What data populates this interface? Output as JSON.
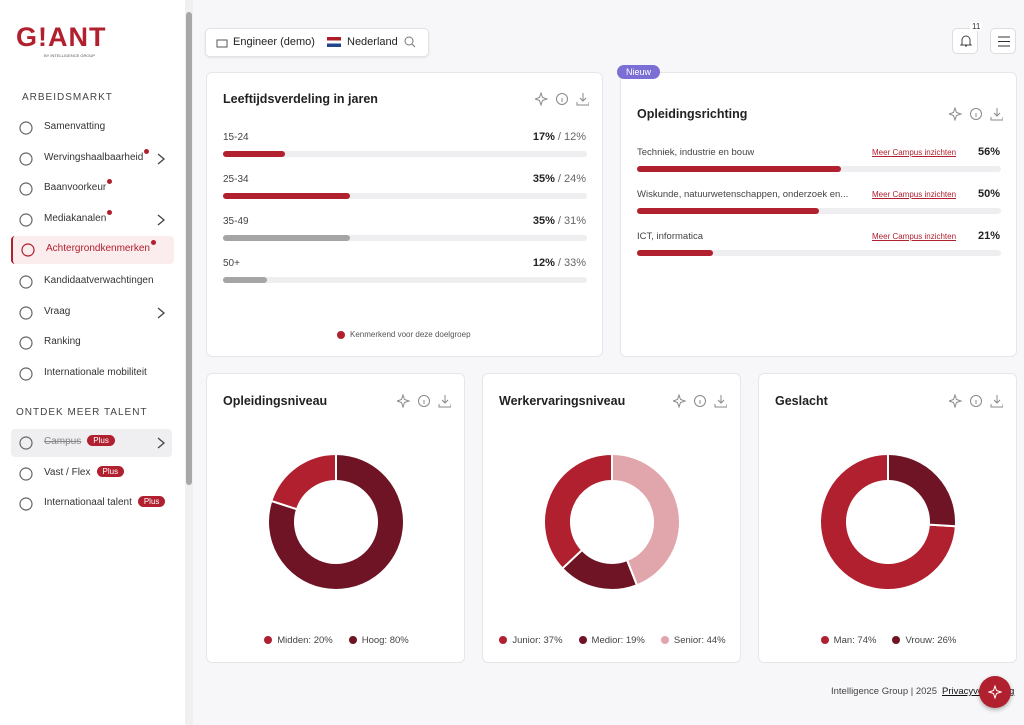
{
  "sidebar": {
    "logo": "G!ANT",
    "logo_sub": "BY INTELLIGENCE GROUP",
    "sections": [
      {
        "title": "ARBEIDSMARKT",
        "items": [
          {
            "label": "Samenvatting"
          },
          {
            "label": "Wervingshaalbaarheid",
            "dot": true,
            "submenu": true
          },
          {
            "label": "Baanvoorkeur",
            "dot": true
          },
          {
            "label": "Mediakanalen",
            "dot": true,
            "submenu": true
          },
          {
            "label": "Achtergrondkenmerken",
            "dot": true,
            "active": true
          },
          {
            "label": "Kandidaatverwachtingen"
          },
          {
            "label": "Vraag",
            "submenu": true
          },
          {
            "label": "Ranking"
          },
          {
            "label": "Internationale mobiliteit"
          }
        ]
      },
      {
        "title": "ONTDEK MEER TALENT",
        "items": [
          {
            "label": "Campus",
            "badge": "Plus",
            "submenu": true,
            "strikethrough": true,
            "shaded": true
          },
          {
            "label": "Vast / Flex",
            "badge": "Plus"
          },
          {
            "label": "Internationaal talent",
            "badge": "Plus"
          }
        ]
      }
    ]
  },
  "topbar": {
    "role": "Engineer (demo)",
    "country": "Nederland",
    "notifications": "11"
  },
  "age_card": {
    "title": "Leeftijdsverdeling in jaren",
    "rows": [
      {
        "label": "15-24",
        "value": 17,
        "value_label": "17%",
        "compare_label": "/ 12%",
        "highlight": true
      },
      {
        "label": "25-34",
        "value": 35,
        "value_label": "35%",
        "compare_label": "/ 24%",
        "highlight": true
      },
      {
        "label": "35-49",
        "value": 35,
        "value_label": "35%",
        "compare_label": "/ 31%",
        "highlight": false
      },
      {
        "label": "50+",
        "value": 12,
        "value_label": "12%",
        "compare_label": "/ 33%",
        "highlight": false
      }
    ],
    "legend": "Kenmerkend voor deze doelgroep"
  },
  "education_card": {
    "badge": "Nieuw",
    "title": "Opleidingsrichting",
    "rows": [
      {
        "label": "Techniek, industrie en bouw",
        "link": "Meer Campus inzichten",
        "value": 56,
        "value_label": "56%"
      },
      {
        "label": "Wiskunde, natuurwetenschappen, onderzoek en...",
        "link": "Meer Campus inzichten",
        "value": 50,
        "value_label": "50%"
      },
      {
        "label": "ICT, informatica",
        "link": "Meer Campus inzichten",
        "value": 21,
        "value_label": "21%"
      }
    ]
  },
  "donuts": [
    {
      "title": "Opleidingsniveau",
      "segments": [
        {
          "label": "Midden: 20%",
          "value": 20,
          "color": "#b0202e"
        },
        {
          "label": "Hoog: 80%",
          "value": 80,
          "color": "#6e1424"
        }
      ]
    },
    {
      "title": "Werkervaringsniveau",
      "segments": [
        {
          "label": "Junior: 37%",
          "value": 37,
          "color": "#b0202e"
        },
        {
          "label": "Medior: 19%",
          "value": 19,
          "color": "#6e1424"
        },
        {
          "label": "Senior: 44%",
          "value": 44,
          "color": "#e0a6ab"
        }
      ]
    },
    {
      "title": "Geslacht",
      "segments": [
        {
          "label": "Man: 74%",
          "value": 74,
          "color": "#b0202e"
        },
        {
          "label": "Vrouw: 26%",
          "value": 26,
          "color": "#6e1424"
        }
      ]
    }
  ],
  "footer": {
    "text": "Intelligence Group | 2025",
    "link": "Privacyverklaring"
  }
}
